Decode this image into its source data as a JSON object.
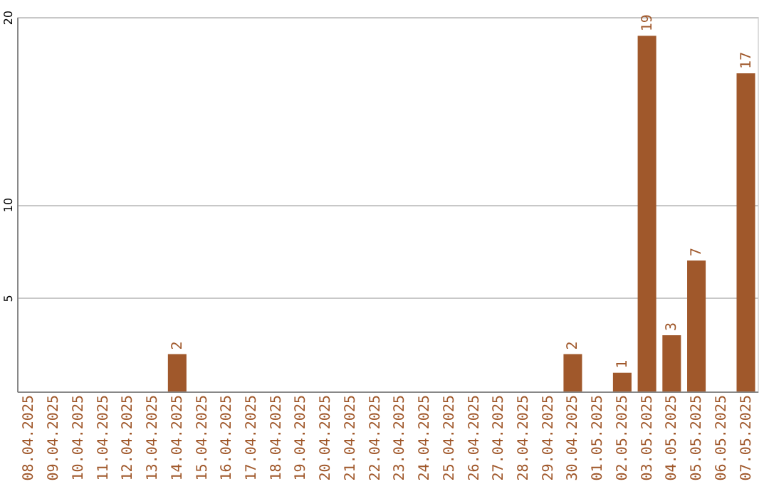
{
  "chart_data": {
    "type": "bar",
    "categories": [
      "08.04.2025",
      "09.04.2025",
      "10.04.2025",
      "11.04.2025",
      "12.04.2025",
      "13.04.2025",
      "14.04.2025",
      "15.04.2025",
      "16.04.2025",
      "17.04.2025",
      "18.04.2025",
      "19.04.2025",
      "20.04.2025",
      "21.04.2025",
      "22.04.2025",
      "23.04.2025",
      "24.04.2025",
      "25.04.2025",
      "26.04.2025",
      "27.04.2025",
      "28.04.2025",
      "29.04.2025",
      "30.04.2025",
      "01.05.2025",
      "02.05.2025",
      "03.05.2025",
      "04.05.2025",
      "05.05.2025",
      "06.05.2025",
      "07.05.2025"
    ],
    "values": [
      0,
      0,
      0,
      0,
      0,
      0,
      2,
      0,
      0,
      0,
      0,
      0,
      0,
      0,
      0,
      0,
      0,
      0,
      0,
      0,
      0,
      0,
      2,
      0,
      1,
      19,
      3,
      7,
      0,
      17
    ],
    "value_labels": [
      null,
      null,
      null,
      null,
      null,
      null,
      "2",
      null,
      null,
      null,
      null,
      null,
      null,
      null,
      null,
      null,
      null,
      null,
      null,
      null,
      null,
      null,
      "2",
      null,
      "1",
      "19",
      "3",
      "7",
      null,
      "17"
    ],
    "color": "#a0582b",
    "ylim": [
      0,
      20
    ],
    "yticks": [
      5,
      10,
      20
    ],
    "grid": "y"
  }
}
